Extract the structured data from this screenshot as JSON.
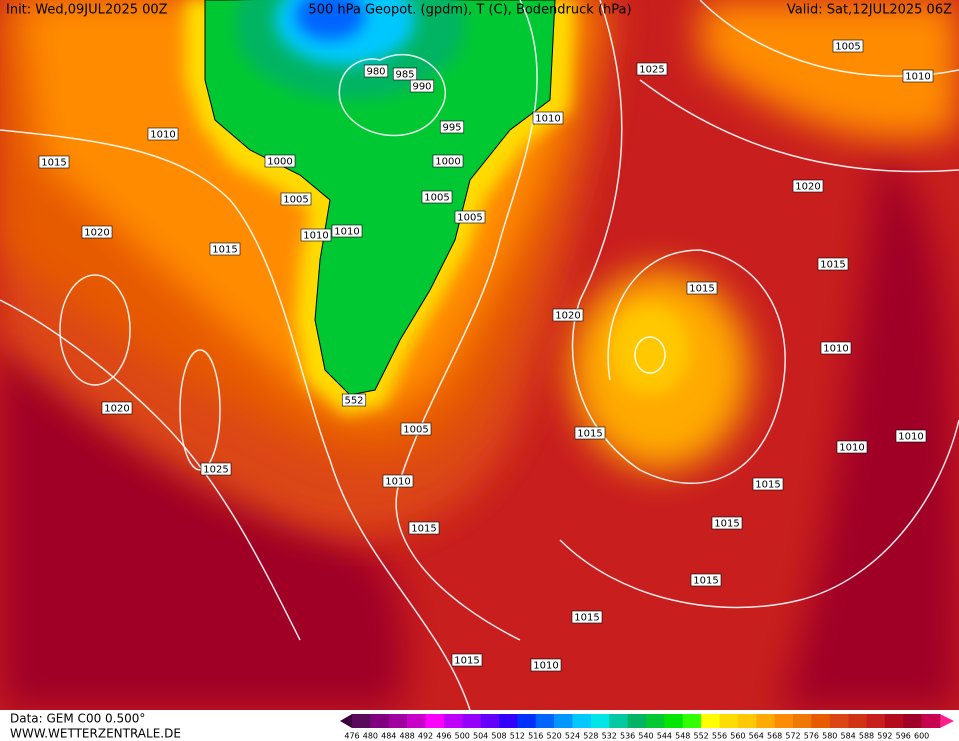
{
  "header": {
    "init": "Init: Wed,09JUL2025 00Z",
    "title": "500 hPa Geopot. (gpdm), T (C), Bodendruck (hPa)",
    "valid": "Valid: Sat,12JUL2025 06Z"
  },
  "map": {
    "isobar_labels": [
      1005,
      1010,
      1025,
      980,
      985,
      990,
      1010,
      995,
      1010,
      1000,
      1000,
      1015,
      1020,
      1005,
      1005,
      1005,
      1010,
      1010,
      1020,
      1015,
      1015,
      1015,
      1020,
      1010,
      552,
      1020,
      1005,
      1015,
      1010,
      1010,
      1025,
      1010,
      1015,
      1015,
      1015,
      1015,
      1015,
      1015,
      1010
    ]
  },
  "legend": {
    "labels": [
      476,
      480,
      484,
      488,
      492,
      496,
      500,
      504,
      508,
      512,
      516,
      520,
      524,
      528,
      532,
      536,
      540,
      544,
      548,
      552,
      556,
      560,
      564,
      568,
      572,
      576,
      580,
      584,
      588,
      592,
      596,
      600
    ],
    "colors": [
      "#5a0a5a",
      "#800080",
      "#a000a0",
      "#c800c8",
      "#ff00ff",
      "#c000ff",
      "#9600ff",
      "#6400ff",
      "#3200ff",
      "#0032ff",
      "#0064ff",
      "#0096ff",
      "#00c8ff",
      "#00e6e6",
      "#00c8a0",
      "#00b464",
      "#00c832",
      "#00e600",
      "#32ff00",
      "#ffff00",
      "#ffdc00",
      "#ffc800",
      "#ffaa00",
      "#ff8c00",
      "#f07800",
      "#e65a00",
      "#dc4614",
      "#d23214",
      "#c81e1e",
      "#b40a1e",
      "#a00028",
      "#c80050"
    ]
  },
  "footer": {
    "data": "Data: GEM C00 0.500°",
    "url": "WWW.WETTERZENTRALE.DE"
  }
}
